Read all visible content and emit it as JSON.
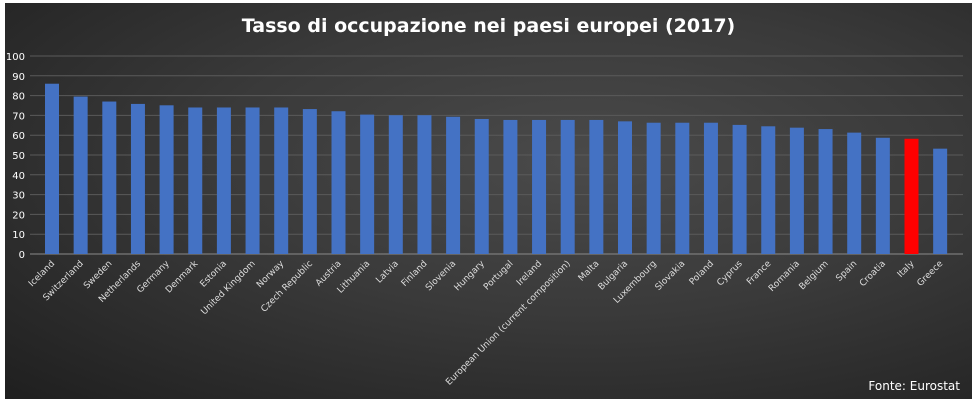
{
  "chart_data": {
    "type": "bar",
    "title": "Tasso di occupazione nei paesi europei (2017)",
    "source": "Fonte: Eurostat",
    "xlabel": "",
    "ylabel": "",
    "ylim": [
      0,
      100
    ],
    "yticks": [
      0,
      10,
      20,
      30,
      40,
      50,
      60,
      70,
      80,
      90,
      100
    ],
    "grid": true,
    "bar_color": "#4472c4",
    "highlight_color": "#ff0000",
    "highlight": "Italy",
    "categories": [
      "Iceland",
      "Switzerland",
      "Sweden",
      "Netherlands",
      "Germany",
      "Denmark",
      "Estonia",
      "United Kingdom",
      "Norway",
      "Czech Republic",
      "Austria",
      "Lithuania",
      "Latvia",
      "Finland",
      "Slovenia",
      "Hungary",
      "Portugal",
      "Ireland",
      "European Union (current composition)",
      "Malta",
      "Bulgaria",
      "Luxembourg",
      "Slovakia",
      "Poland",
      "Cyprus",
      "France",
      "Romania",
      "Belgium",
      "Spain",
      "Croatia",
      "Italy",
      "Greece"
    ],
    "values": [
      86,
      79.5,
      77,
      75.8,
      75.1,
      74,
      74,
      74,
      74,
      73.2,
      72.1,
      70.4,
      70.1,
      70.1,
      69.3,
      68.2,
      67.7,
      67.7,
      67.7,
      67.7,
      67,
      66.3,
      66.3,
      66.3,
      65.2,
      64.5,
      63.8,
      63.1,
      61.3,
      58.7,
      58.2,
      53.2
    ]
  }
}
